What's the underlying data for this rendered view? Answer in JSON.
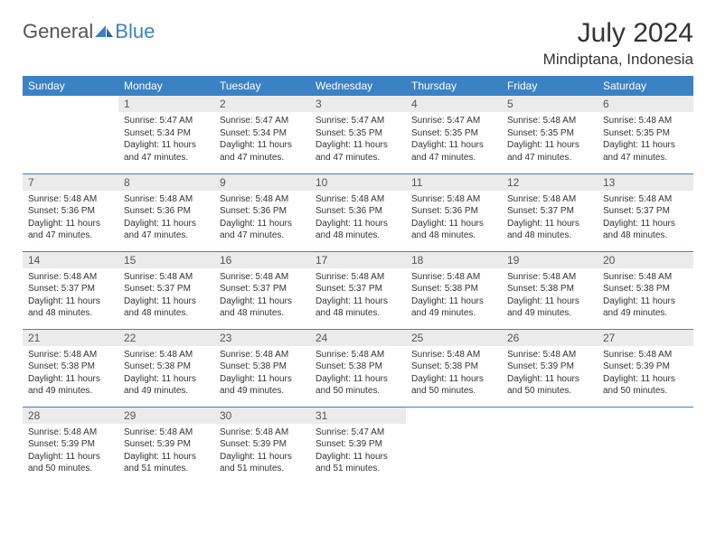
{
  "brand": {
    "general": "General",
    "blue": "Blue"
  },
  "title": {
    "month_year": "July 2024",
    "location": "Mindiptana, Indonesia"
  },
  "colors": {
    "header_bg": "#3b82c4",
    "header_fg": "#ffffff",
    "daynum_bg": "#ebebeb",
    "row_border": "#3b82c4"
  },
  "typography": {
    "title_fontsize": 30,
    "location_fontsize": 17,
    "header_fontsize": 12,
    "cell_fontsize": 10
  },
  "weekdays": [
    "Sunday",
    "Monday",
    "Tuesday",
    "Wednesday",
    "Thursday",
    "Friday",
    "Saturday"
  ],
  "weeks": [
    [
      null,
      {
        "n": "1",
        "sunrise": "5:47 AM",
        "sunset": "5:34 PM",
        "dl": "11 hours and 47 minutes."
      },
      {
        "n": "2",
        "sunrise": "5:47 AM",
        "sunset": "5:34 PM",
        "dl": "11 hours and 47 minutes."
      },
      {
        "n": "3",
        "sunrise": "5:47 AM",
        "sunset": "5:35 PM",
        "dl": "11 hours and 47 minutes."
      },
      {
        "n": "4",
        "sunrise": "5:47 AM",
        "sunset": "5:35 PM",
        "dl": "11 hours and 47 minutes."
      },
      {
        "n": "5",
        "sunrise": "5:48 AM",
        "sunset": "5:35 PM",
        "dl": "11 hours and 47 minutes."
      },
      {
        "n": "6",
        "sunrise": "5:48 AM",
        "sunset": "5:35 PM",
        "dl": "11 hours and 47 minutes."
      }
    ],
    [
      {
        "n": "7",
        "sunrise": "5:48 AM",
        "sunset": "5:36 PM",
        "dl": "11 hours and 47 minutes."
      },
      {
        "n": "8",
        "sunrise": "5:48 AM",
        "sunset": "5:36 PM",
        "dl": "11 hours and 47 minutes."
      },
      {
        "n": "9",
        "sunrise": "5:48 AM",
        "sunset": "5:36 PM",
        "dl": "11 hours and 47 minutes."
      },
      {
        "n": "10",
        "sunrise": "5:48 AM",
        "sunset": "5:36 PM",
        "dl": "11 hours and 48 minutes."
      },
      {
        "n": "11",
        "sunrise": "5:48 AM",
        "sunset": "5:36 PM",
        "dl": "11 hours and 48 minutes."
      },
      {
        "n": "12",
        "sunrise": "5:48 AM",
        "sunset": "5:37 PM",
        "dl": "11 hours and 48 minutes."
      },
      {
        "n": "13",
        "sunrise": "5:48 AM",
        "sunset": "5:37 PM",
        "dl": "11 hours and 48 minutes."
      }
    ],
    [
      {
        "n": "14",
        "sunrise": "5:48 AM",
        "sunset": "5:37 PM",
        "dl": "11 hours and 48 minutes."
      },
      {
        "n": "15",
        "sunrise": "5:48 AM",
        "sunset": "5:37 PM",
        "dl": "11 hours and 48 minutes."
      },
      {
        "n": "16",
        "sunrise": "5:48 AM",
        "sunset": "5:37 PM",
        "dl": "11 hours and 48 minutes."
      },
      {
        "n": "17",
        "sunrise": "5:48 AM",
        "sunset": "5:37 PM",
        "dl": "11 hours and 48 minutes."
      },
      {
        "n": "18",
        "sunrise": "5:48 AM",
        "sunset": "5:38 PM",
        "dl": "11 hours and 49 minutes."
      },
      {
        "n": "19",
        "sunrise": "5:48 AM",
        "sunset": "5:38 PM",
        "dl": "11 hours and 49 minutes."
      },
      {
        "n": "20",
        "sunrise": "5:48 AM",
        "sunset": "5:38 PM",
        "dl": "11 hours and 49 minutes."
      }
    ],
    [
      {
        "n": "21",
        "sunrise": "5:48 AM",
        "sunset": "5:38 PM",
        "dl": "11 hours and 49 minutes."
      },
      {
        "n": "22",
        "sunrise": "5:48 AM",
        "sunset": "5:38 PM",
        "dl": "11 hours and 49 minutes."
      },
      {
        "n": "23",
        "sunrise": "5:48 AM",
        "sunset": "5:38 PM",
        "dl": "11 hours and 49 minutes."
      },
      {
        "n": "24",
        "sunrise": "5:48 AM",
        "sunset": "5:38 PM",
        "dl": "11 hours and 50 minutes."
      },
      {
        "n": "25",
        "sunrise": "5:48 AM",
        "sunset": "5:38 PM",
        "dl": "11 hours and 50 minutes."
      },
      {
        "n": "26",
        "sunrise": "5:48 AM",
        "sunset": "5:39 PM",
        "dl": "11 hours and 50 minutes."
      },
      {
        "n": "27",
        "sunrise": "5:48 AM",
        "sunset": "5:39 PM",
        "dl": "11 hours and 50 minutes."
      }
    ],
    [
      {
        "n": "28",
        "sunrise": "5:48 AM",
        "sunset": "5:39 PM",
        "dl": "11 hours and 50 minutes."
      },
      {
        "n": "29",
        "sunrise": "5:48 AM",
        "sunset": "5:39 PM",
        "dl": "11 hours and 51 minutes."
      },
      {
        "n": "30",
        "sunrise": "5:48 AM",
        "sunset": "5:39 PM",
        "dl": "11 hours and 51 minutes."
      },
      {
        "n": "31",
        "sunrise": "5:47 AM",
        "sunset": "5:39 PM",
        "dl": "11 hours and 51 minutes."
      },
      null,
      null,
      null
    ]
  ],
  "labels": {
    "sunrise": "Sunrise:",
    "sunset": "Sunset:",
    "daylight": "Daylight:"
  }
}
